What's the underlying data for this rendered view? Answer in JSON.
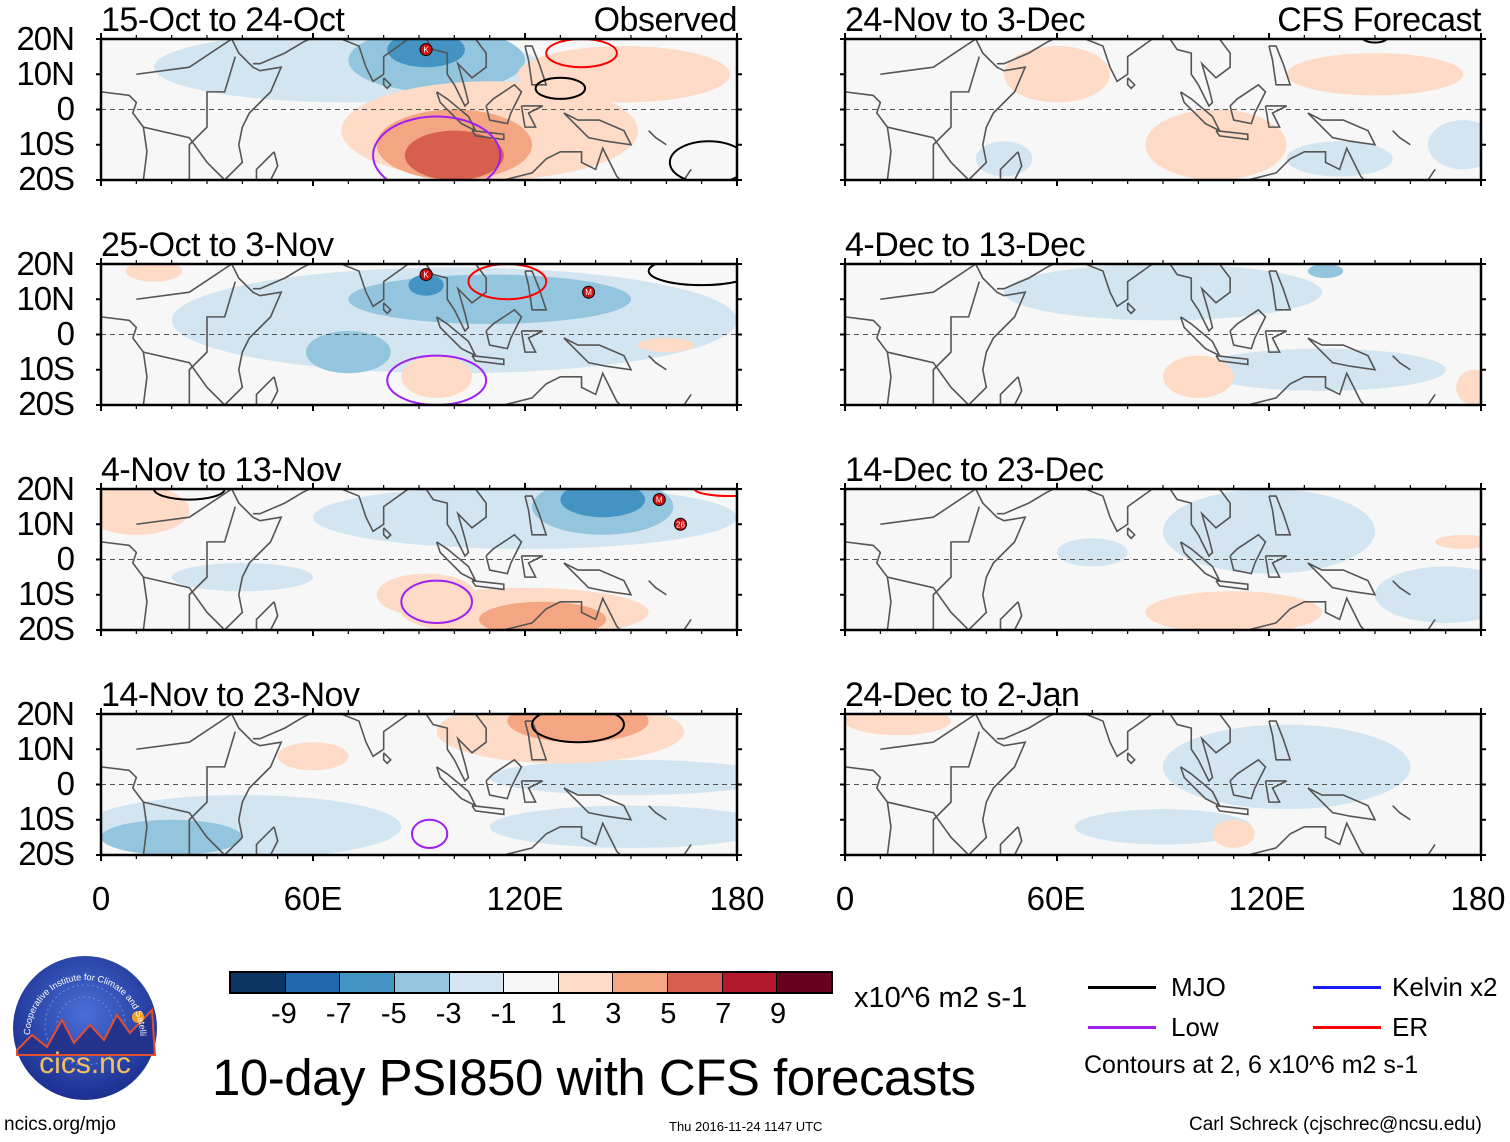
{
  "title": "10-day PSI850 with CFS forecasts",
  "url": "ncics.org/mjo",
  "timestamp": "Thu 2016-11-24 1147 UTC",
  "credit": "Carl Schreck (cjschrec@ncsu.edu)",
  "logo": {
    "text": "cics.nc",
    "ring_text": "Cooperative Institute for Climate and Satellites"
  },
  "axes": {
    "lat_labels": [
      "20N",
      "10N",
      "0",
      "10S",
      "20S"
    ],
    "lon_labels": [
      "0",
      "60E",
      "120E",
      "180"
    ],
    "lon_range": [
      0,
      180
    ],
    "lat_range": [
      -20,
      20
    ]
  },
  "colorbar": {
    "unit": "x10^6 m2 s-1",
    "labels": [
      "-9",
      "-7",
      "-5",
      "-3",
      "-1",
      "1",
      "3",
      "5",
      "7",
      "9"
    ],
    "colors": [
      "#0b3463",
      "#2268ad",
      "#4393c3",
      "#93c6de",
      "#d2e5f0",
      "#f7f7f7",
      "#fddbc7",
      "#f4a582",
      "#d6604d",
      "#b2182b",
      "#67001f"
    ]
  },
  "legend": {
    "items": [
      {
        "label": "MJO",
        "color": "#000000"
      },
      {
        "label": "Kelvin x2",
        "color": "#1a1aff"
      },
      {
        "label": "Low",
        "color": "#a020f0"
      },
      {
        "label": "ER",
        "color": "#ff0000"
      }
    ],
    "note": "Contours at 2, 6 x10^6 m2 s-1"
  },
  "panels": [
    {
      "title": "15-Oct to 24-Oct",
      "tag": "Observed",
      "fill": [
        [
          70,
          12,
          55,
          10,
          -1
        ],
        [
          95,
          14,
          25,
          9,
          -3
        ],
        [
          92,
          17,
          11,
          5,
          -5
        ],
        [
          110,
          -6,
          42,
          14,
          1
        ],
        [
          148,
          10,
          30,
          8,
          1
        ],
        [
          100,
          -10,
          22,
          10,
          3
        ],
        [
          100,
          -13,
          14,
          7,
          5
        ]
      ],
      "contours": [
        [
          136,
          16,
          10,
          4,
          "ER"
        ],
        [
          130,
          6,
          7,
          3,
          "MJO"
        ],
        [
          172,
          -15,
          11,
          6,
          "MJO"
        ],
        [
          95,
          -13,
          18,
          11,
          "Low"
        ]
      ],
      "storms": [
        {
          "label": "K",
          "lon": 92,
          "lat": 17
        }
      ]
    },
    {
      "title": "24-Nov to 3-Dec",
      "tag": "CFS Forecast",
      "fill": [
        [
          60,
          10,
          15,
          8,
          1
        ],
        [
          105,
          -10,
          20,
          10,
          1
        ],
        [
          150,
          10,
          25,
          6,
          1
        ],
        [
          175,
          -10,
          10,
          7,
          -1
        ],
        [
          140,
          -14,
          15,
          5,
          -1
        ],
        [
          45,
          -14,
          8,
          5,
          -1
        ]
      ],
      "contours": [
        [
          150,
          21,
          4,
          2,
          "MJO"
        ]
      ],
      "storms": []
    },
    {
      "title": "25-Oct to 3-Nov",
      "tag": "",
      "fill": [
        [
          100,
          4,
          80,
          15,
          -1
        ],
        [
          110,
          10,
          40,
          7,
          -3
        ],
        [
          70,
          -5,
          12,
          6,
          -3
        ],
        [
          92,
          14,
          5,
          3,
          -5
        ],
        [
          95,
          -12,
          10,
          6,
          1
        ],
        [
          15,
          18,
          8,
          3,
          1
        ],
        [
          160,
          -3,
          8,
          2,
          1
        ]
      ],
      "contours": [
        [
          115,
          15,
          11,
          5,
          "ER"
        ],
        [
          170,
          18,
          15,
          4,
          "MJO"
        ],
        [
          95,
          -13,
          14,
          7,
          "Low"
        ]
      ],
      "storms": [
        {
          "label": "K",
          "lon": 92,
          "lat": 17
        },
        {
          "label": "M",
          "lon": 138,
          "lat": 12
        }
      ]
    },
    {
      "title": "4-Dec to 13-Dec",
      "tag": "",
      "fill": [
        [
          90,
          12,
          45,
          8,
          -1
        ],
        [
          135,
          -10,
          35,
          6,
          -1
        ],
        [
          100,
          -12,
          10,
          6,
          1
        ],
        [
          178,
          -15,
          5,
          5,
          1
        ],
        [
          136,
          18,
          5,
          2,
          -3
        ]
      ],
      "contours": [],
      "storms": []
    },
    {
      "title": "4-Nov to 13-Nov",
      "tag": "",
      "fill": [
        [
          120,
          12,
          60,
          9,
          -1
        ],
        [
          142,
          15,
          20,
          8,
          -3
        ],
        [
          142,
          17,
          12,
          5,
          -5
        ],
        [
          120,
          -15,
          35,
          7,
          1
        ],
        [
          125,
          -17,
          18,
          5,
          3
        ],
        [
          92,
          -10,
          14,
          6,
          1
        ],
        [
          10,
          14,
          15,
          7,
          1
        ],
        [
          40,
          -5,
          20,
          4,
          -1
        ]
      ],
      "contours": [
        [
          25,
          20,
          10,
          3,
          "MJO"
        ],
        [
          95,
          -12,
          10,
          6,
          "Low"
        ],
        [
          178,
          20,
          10,
          2,
          "ER"
        ]
      ],
      "storms": [
        {
          "label": "M",
          "lon": 158,
          "lat": 17
        },
        {
          "label": "26",
          "lon": 164,
          "lat": 10
        }
      ]
    },
    {
      "title": "14-Dec to 23-Dec",
      "tag": "",
      "fill": [
        [
          120,
          8,
          30,
          12,
          -1
        ],
        [
          170,
          -10,
          20,
          8,
          -1
        ],
        [
          110,
          -15,
          25,
          6,
          1
        ],
        [
          175,
          5,
          8,
          2,
          1
        ],
        [
          70,
          2,
          10,
          4,
          -1
        ]
      ],
      "contours": [],
      "storms": []
    },
    {
      "title": "14-Nov to 23-Nov",
      "tag": "",
      "fill": [
        [
          40,
          -12,
          45,
          9,
          -1
        ],
        [
          20,
          -15,
          20,
          5,
          -3
        ],
        [
          150,
          2,
          40,
          5,
          -1
        ],
        [
          150,
          -12,
          40,
          6,
          -1
        ],
        [
          130,
          15,
          35,
          9,
          1
        ],
        [
          135,
          18,
          20,
          6,
          3
        ],
        [
          60,
          8,
          10,
          4,
          1
        ]
      ],
      "contours": [
        [
          135,
          17,
          13,
          5,
          "MJO"
        ],
        [
          93,
          -14,
          5,
          4,
          "Low"
        ]
      ],
      "storms": []
    },
    {
      "title": "24-Dec to 2-Jan",
      "tag": "",
      "fill": [
        [
          125,
          5,
          35,
          12,
          -1
        ],
        [
          90,
          -12,
          25,
          5,
          -1
        ],
        [
          15,
          18,
          15,
          4,
          1
        ],
        [
          110,
          -14,
          6,
          4,
          1
        ]
      ],
      "contours": [],
      "storms": []
    }
  ]
}
